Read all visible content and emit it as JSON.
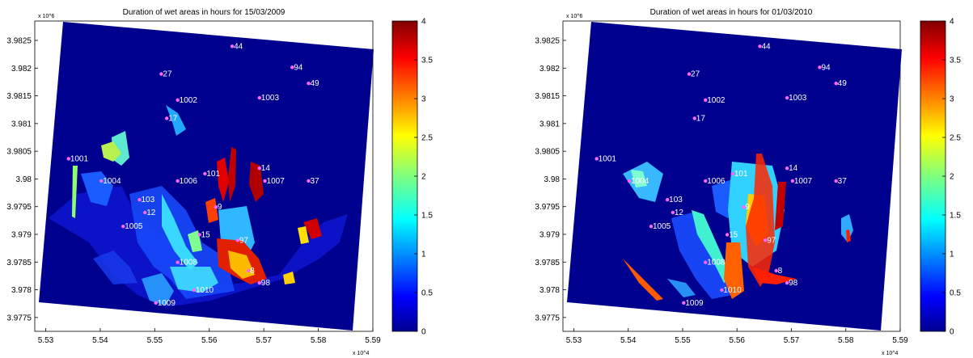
{
  "chart_data": [
    {
      "type": "heatmap",
      "title": "Duration of wet areas in hours for 15/03/2009",
      "xlabel": "",
      "ylabel": "",
      "x_multiplier": "x 10^4",
      "y_multiplier": "x 10^6",
      "x_ticks": [
        "5.53",
        "5.54",
        "5.55",
        "5.56",
        "5.57",
        "5.58",
        "5.59"
      ],
      "y_ticks": [
        "3.9825",
        "3.982",
        "3.9815",
        "3.981",
        "3.9805",
        "3.98",
        "3.9795",
        "3.979",
        "3.9785",
        "3.978",
        "3.9775"
      ],
      "xlim": [
        5.528,
        5.59
      ],
      "ylim": [
        3.97725,
        3.98285
      ],
      "colorbar": {
        "range": [
          0,
          4
        ],
        "ticks": [
          "0",
          "0.5",
          "1",
          "1.5",
          "2",
          "2.5",
          "3",
          "3.5",
          "4"
        ],
        "colormap": "jet"
      },
      "stations": [
        {
          "label": "44",
          "x": 5.5645,
          "y": 3.98235
        },
        {
          "label": "94",
          "x": 5.5755,
          "y": 3.98197
        },
        {
          "label": "27",
          "x": 5.5515,
          "y": 3.98185
        },
        {
          "label": "49",
          "x": 5.5785,
          "y": 3.98168
        },
        {
          "label": "1002",
          "x": 5.5545,
          "y": 3.98138
        },
        {
          "label": "1003",
          "x": 5.5695,
          "y": 3.98142
        },
        {
          "label": "17",
          "x": 5.5525,
          "y": 3.98105
        },
        {
          "label": "1001",
          "x": 5.5345,
          "y": 3.98032
        },
        {
          "label": "14",
          "x": 5.5695,
          "y": 3.98015
        },
        {
          "label": "101",
          "x": 5.5595,
          "y": 3.98005
        },
        {
          "label": "1004",
          "x": 5.5405,
          "y": 3.97992
        },
        {
          "label": "1006",
          "x": 5.5545,
          "y": 3.97992
        },
        {
          "label": "1007",
          "x": 5.5705,
          "y": 3.97992
        },
        {
          "label": "37",
          "x": 5.5785,
          "y": 3.97992
        },
        {
          "label": "103",
          "x": 5.5475,
          "y": 3.97958
        },
        {
          "label": "9",
          "x": 5.5615,
          "y": 3.97945
        },
        {
          "label": "12",
          "x": 5.5485,
          "y": 3.97935
        },
        {
          "label": "1005",
          "x": 5.5445,
          "y": 3.9791
        },
        {
          "label": "15",
          "x": 5.5585,
          "y": 3.97895
        },
        {
          "label": "97",
          "x": 5.5655,
          "y": 3.97885
        },
        {
          "label": "1008",
          "x": 5.5545,
          "y": 3.97845
        },
        {
          "label": "8",
          "x": 5.5675,
          "y": 3.9783
        },
        {
          "label": "98",
          "x": 5.5695,
          "y": 3.97808
        },
        {
          "label": "1010",
          "x": 5.5575,
          "y": 3.97795
        },
        {
          "label": "1009",
          "x": 5.5505,
          "y": 3.97772
        }
      ]
    },
    {
      "type": "heatmap",
      "title": "Duration of wet areas in hours for 01/03/2010",
      "xlabel": "",
      "ylabel": "",
      "x_multiplier": "x 10^4",
      "y_multiplier": "x 10^6",
      "x_ticks": [
        "5.53",
        "5.54",
        "5.55",
        "5.56",
        "5.57",
        "5.58",
        "5.59"
      ],
      "y_ticks": [
        "3.9825",
        "3.982",
        "3.9815",
        "3.981",
        "3.9805",
        "3.98",
        "3.9795",
        "3.979",
        "3.9785",
        "3.978",
        "3.9775"
      ],
      "xlim": [
        5.528,
        5.59
      ],
      "ylim": [
        3.97725,
        3.98285
      ],
      "colorbar": {
        "range": [
          0,
          4
        ],
        "ticks": [
          "0",
          "0.5",
          "1",
          "1.5",
          "2",
          "2.5",
          "3",
          "3.5",
          "4"
        ],
        "colormap": "jet"
      },
      "stations": [
        {
          "label": "44",
          "x": 5.5645,
          "y": 3.98235
        },
        {
          "label": "94",
          "x": 5.5755,
          "y": 3.98197
        },
        {
          "label": "27",
          "x": 5.5515,
          "y": 3.98185
        },
        {
          "label": "49",
          "x": 5.5785,
          "y": 3.98168
        },
        {
          "label": "1002",
          "x": 5.5545,
          "y": 3.98138
        },
        {
          "label": "1003",
          "x": 5.5695,
          "y": 3.98142
        },
        {
          "label": "17",
          "x": 5.5525,
          "y": 3.98105
        },
        {
          "label": "1001",
          "x": 5.5345,
          "y": 3.98032
        },
        {
          "label": "14",
          "x": 5.5695,
          "y": 3.98015
        },
        {
          "label": "101",
          "x": 5.5595,
          "y": 3.98005
        },
        {
          "label": "1004",
          "x": 5.5405,
          "y": 3.97992
        },
        {
          "label": "1006",
          "x": 5.5545,
          "y": 3.97992
        },
        {
          "label": "1007",
          "x": 5.5705,
          "y": 3.97992
        },
        {
          "label": "37",
          "x": 5.5785,
          "y": 3.97992
        },
        {
          "label": "103",
          "x": 5.5475,
          "y": 3.97958
        },
        {
          "label": "9",
          "x": 5.5615,
          "y": 3.97945
        },
        {
          "label": "12",
          "x": 5.5485,
          "y": 3.97935
        },
        {
          "label": "1005",
          "x": 5.5445,
          "y": 3.9791
        },
        {
          "label": "15",
          "x": 5.5585,
          "y": 3.97895
        },
        {
          "label": "97",
          "x": 5.5655,
          "y": 3.97885
        },
        {
          "label": "1008",
          "x": 5.5545,
          "y": 3.97845
        },
        {
          "label": "8",
          "x": 5.5675,
          "y": 3.9783
        },
        {
          "label": "98",
          "x": 5.5695,
          "y": 3.97808
        },
        {
          "label": "1010",
          "x": 5.5575,
          "y": 3.97795
        },
        {
          "label": "1009",
          "x": 5.5505,
          "y": 3.97772
        }
      ]
    }
  ]
}
